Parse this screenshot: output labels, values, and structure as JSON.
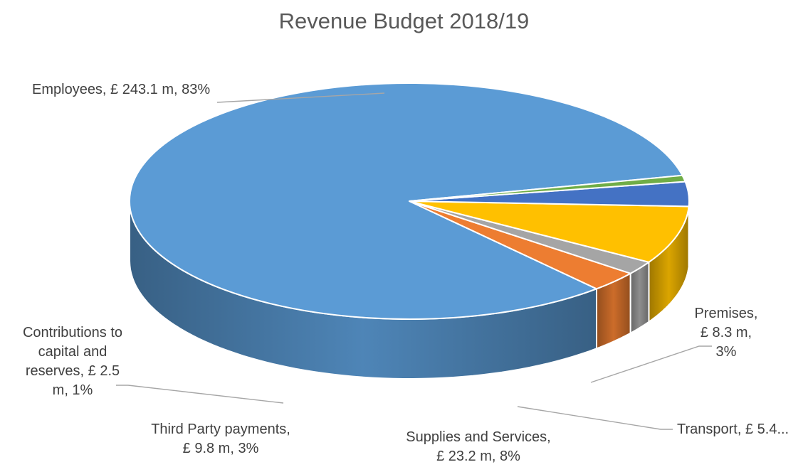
{
  "chart_data": {
    "type": "pie",
    "style": "3d",
    "title": "Revenue Budget 2018/19",
    "slices": [
      {
        "name": "Employees",
        "value": 243.1,
        "percent": 83,
        "unit": "£ m",
        "color": "#5b9bd5",
        "label_lines": [
          "Employees, £ 243.1 m, 83%"
        ]
      },
      {
        "name": "Premises",
        "value": 8.3,
        "percent": 3,
        "unit": "£ m",
        "color": "#ed7d31",
        "label_lines": [
          "Premises,",
          "£ 8.3 m,",
          "3%"
        ]
      },
      {
        "name": "Transport",
        "value": 5.4,
        "percent": 2,
        "unit": "£ m",
        "color": "#a5a5a5",
        "label_lines": [
          "Transport, £ 5.4..."
        ]
      },
      {
        "name": "Supplies and Services",
        "value": 23.2,
        "percent": 8,
        "unit": "£ m",
        "color": "#ffc000",
        "label_lines": [
          "Supplies and Services,",
          "£ 23.2 m, 8%"
        ]
      },
      {
        "name": "Third Party payments",
        "value": 9.8,
        "percent": 3,
        "unit": "£ m",
        "color": "#4472c4",
        "label_lines": [
          "Third Party payments,",
          "£ 9.8 m, 3%"
        ]
      },
      {
        "name": "Contributions to capital and reserves",
        "value": 2.5,
        "percent": 1,
        "unit": "£ m",
        "color": "#70ad47",
        "label_lines": [
          "Contributions to",
          "capital and",
          "reserves, £ 2.5",
          "m, 1%"
        ]
      }
    ]
  }
}
